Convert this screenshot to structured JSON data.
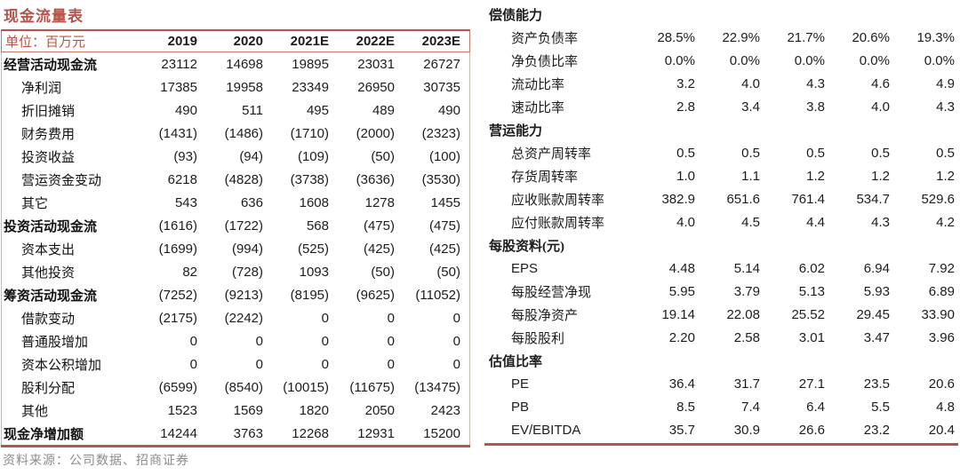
{
  "colors": {
    "accent": "#b5544a",
    "header_box_border": "#bd7a69",
    "side_border": "#cfbab2",
    "source_text": "#8b8b8b",
    "body_text": "#1c1c1c"
  },
  "left_table": {
    "title": "现金流量表",
    "unit_label": "单位：百万元",
    "columns": [
      "2019",
      "2020",
      "2021E",
      "2022E",
      "2023E"
    ],
    "rows": [
      {
        "label": "经营活动现金流",
        "bold": true,
        "values": [
          "23112",
          "14698",
          "19895",
          "23031",
          "26727"
        ]
      },
      {
        "label": "净利润",
        "bold": false,
        "values": [
          "17385",
          "19958",
          "23349",
          "26950",
          "30735"
        ]
      },
      {
        "label": "折旧摊销",
        "bold": false,
        "values": [
          "490",
          "511",
          "495",
          "489",
          "490"
        ]
      },
      {
        "label": "财务费用",
        "bold": false,
        "values": [
          "(1431)",
          "(1486)",
          "(1710)",
          "(2000)",
          "(2323)"
        ]
      },
      {
        "label": "投资收益",
        "bold": false,
        "values": [
          "(93)",
          "(94)",
          "(109)",
          "(50)",
          "(100)"
        ]
      },
      {
        "label": "营运资金变动",
        "bold": false,
        "values": [
          "6218",
          "(4828)",
          "(3738)",
          "(3636)",
          "(3530)"
        ]
      },
      {
        "label": "其它",
        "bold": false,
        "values": [
          "543",
          "636",
          "1608",
          "1278",
          "1455"
        ]
      },
      {
        "label": "投资活动现金流",
        "bold": true,
        "values": [
          "(1616)",
          "(1722)",
          "568",
          "(475)",
          "(475)"
        ]
      },
      {
        "label": "资本支出",
        "bold": false,
        "values": [
          "(1699)",
          "(994)",
          "(525)",
          "(425)",
          "(425)"
        ]
      },
      {
        "label": "其他投资",
        "bold": false,
        "values": [
          "82",
          "(728)",
          "1093",
          "(50)",
          "(50)"
        ]
      },
      {
        "label": "筹资活动现金流",
        "bold": true,
        "values": [
          "(7252)",
          "(9213)",
          "(8195)",
          "(9625)",
          "(11052)"
        ]
      },
      {
        "label": "借款变动",
        "bold": false,
        "values": [
          "(2175)",
          "(2242)",
          "0",
          "0",
          "0"
        ]
      },
      {
        "label": "普通股增加",
        "bold": false,
        "values": [
          "0",
          "0",
          "0",
          "0",
          "0"
        ]
      },
      {
        "label": "资本公积增加",
        "bold": false,
        "values": [
          "0",
          "0",
          "0",
          "0",
          "0"
        ]
      },
      {
        "label": "股利分配",
        "bold": false,
        "values": [
          "(6599)",
          "(8540)",
          "(10015)",
          "(11675)",
          "(13475)"
        ]
      },
      {
        "label": "其他",
        "bold": false,
        "values": [
          "1523",
          "1569",
          "1820",
          "2050",
          "2423"
        ]
      },
      {
        "label": "现金净增加额",
        "bold": true,
        "values": [
          "14244",
          "3763",
          "12268",
          "12931",
          "15200"
        ]
      }
    ],
    "source": "资料来源：公司数据、招商证券"
  },
  "right_table": {
    "sections": [
      {
        "header": "偿债能力",
        "rows": [
          {
            "label": "资产负债率",
            "latin": false,
            "values": [
              "28.5%",
              "22.9%",
              "21.7%",
              "20.6%",
              "19.3%"
            ]
          },
          {
            "label": "净负债比率",
            "latin": false,
            "values": [
              "0.0%",
              "0.0%",
              "0.0%",
              "0.0%",
              "0.0%"
            ]
          },
          {
            "label": "流动比率",
            "latin": false,
            "values": [
              "3.2",
              "4.0",
              "4.3",
              "4.6",
              "4.9"
            ]
          },
          {
            "label": "速动比率",
            "latin": false,
            "values": [
              "2.8",
              "3.4",
              "3.8",
              "4.0",
              "4.3"
            ]
          }
        ]
      },
      {
        "header": "营运能力",
        "rows": [
          {
            "label": "总资产周转率",
            "latin": false,
            "values": [
              "0.5",
              "0.5",
              "0.5",
              "0.5",
              "0.5"
            ]
          },
          {
            "label": "存货周转率",
            "latin": false,
            "values": [
              "1.0",
              "1.1",
              "1.2",
              "1.2",
              "1.2"
            ]
          },
          {
            "label": "应收账款周转率",
            "latin": false,
            "values": [
              "382.9",
              "651.6",
              "761.4",
              "534.7",
              "529.6"
            ]
          },
          {
            "label": "应付账款周转率",
            "latin": false,
            "values": [
              "4.0",
              "4.5",
              "4.4",
              "4.3",
              "4.2"
            ]
          }
        ]
      },
      {
        "header": "每股资料(元)",
        "rows": [
          {
            "label": "EPS",
            "latin": true,
            "values": [
              "4.48",
              "5.14",
              "6.02",
              "6.94",
              "7.92"
            ]
          },
          {
            "label": "每股经营净现",
            "latin": false,
            "values": [
              "5.95",
              "3.79",
              "5.13",
              "5.93",
              "6.89"
            ]
          },
          {
            "label": "每股净资产",
            "latin": false,
            "values": [
              "19.14",
              "22.08",
              "25.52",
              "29.45",
              "33.90"
            ]
          },
          {
            "label": "每股股利",
            "latin": false,
            "values": [
              "2.20",
              "2.58",
              "3.01",
              "3.47",
              "3.96"
            ]
          }
        ]
      },
      {
        "header": "估值比率",
        "rows": [
          {
            "label": "PE",
            "latin": true,
            "values": [
              "36.4",
              "31.7",
              "27.1",
              "23.5",
              "20.6"
            ]
          },
          {
            "label": "PB",
            "latin": true,
            "values": [
              "8.5",
              "7.4",
              "6.4",
              "5.5",
              "4.8"
            ]
          },
          {
            "label": "EV/EBITDA",
            "latin": true,
            "values": [
              "35.7",
              "30.9",
              "26.6",
              "23.2",
              "20.4"
            ]
          }
        ]
      }
    ]
  }
}
